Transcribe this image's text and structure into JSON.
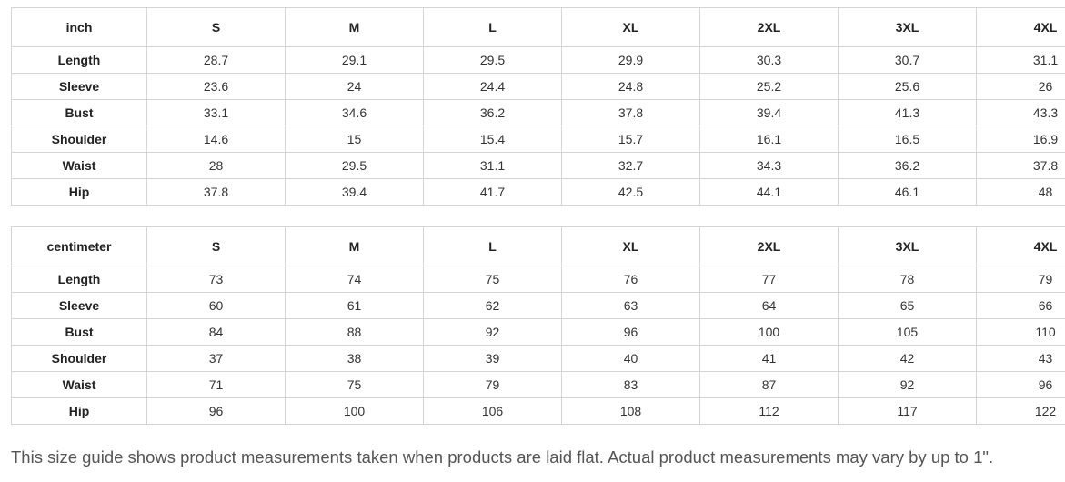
{
  "tables": [
    {
      "unit": "inch",
      "sizes": [
        "S",
        "M",
        "L",
        "XL",
        "2XL",
        "3XL",
        "4XL"
      ],
      "rows": [
        {
          "label": "Length",
          "values": [
            "28.7",
            "29.1",
            "29.5",
            "29.9",
            "30.3",
            "30.7",
            "31.1"
          ]
        },
        {
          "label": "Sleeve",
          "values": [
            "23.6",
            "24",
            "24.4",
            "24.8",
            "25.2",
            "25.6",
            "26"
          ]
        },
        {
          "label": "Bust",
          "values": [
            "33.1",
            "34.6",
            "36.2",
            "37.8",
            "39.4",
            "41.3",
            "43.3"
          ]
        },
        {
          "label": "Shoulder",
          "values": [
            "14.6",
            "15",
            "15.4",
            "15.7",
            "16.1",
            "16.5",
            "16.9"
          ]
        },
        {
          "label": "Waist",
          "values": [
            "28",
            "29.5",
            "31.1",
            "32.7",
            "34.3",
            "36.2",
            "37.8"
          ]
        },
        {
          "label": "Hip",
          "values": [
            "37.8",
            "39.4",
            "41.7",
            "42.5",
            "44.1",
            "46.1",
            "48"
          ]
        }
      ]
    },
    {
      "unit": "centimeter",
      "sizes": [
        "S",
        "M",
        "L",
        "XL",
        "2XL",
        "3XL",
        "4XL"
      ],
      "rows": [
        {
          "label": "Length",
          "values": [
            "73",
            "74",
            "75",
            "76",
            "77",
            "78",
            "79"
          ]
        },
        {
          "label": "Sleeve",
          "values": [
            "60",
            "61",
            "62",
            "63",
            "64",
            "65",
            "66"
          ]
        },
        {
          "label": "Bust",
          "values": [
            "84",
            "88",
            "92",
            "96",
            "100",
            "105",
            "110"
          ]
        },
        {
          "label": "Shoulder",
          "values": [
            "37",
            "38",
            "39",
            "40",
            "41",
            "42",
            "43"
          ]
        },
        {
          "label": "Waist",
          "values": [
            "71",
            "75",
            "79",
            "83",
            "87",
            "92",
            "96"
          ]
        },
        {
          "label": "Hip",
          "values": [
            "96",
            "100",
            "106",
            "108",
            "112",
            "117",
            "122"
          ]
        }
      ]
    }
  ],
  "note": "This size guide shows product measurements taken when products are laid flat. Actual product measurements may vary by up to 1\"."
}
